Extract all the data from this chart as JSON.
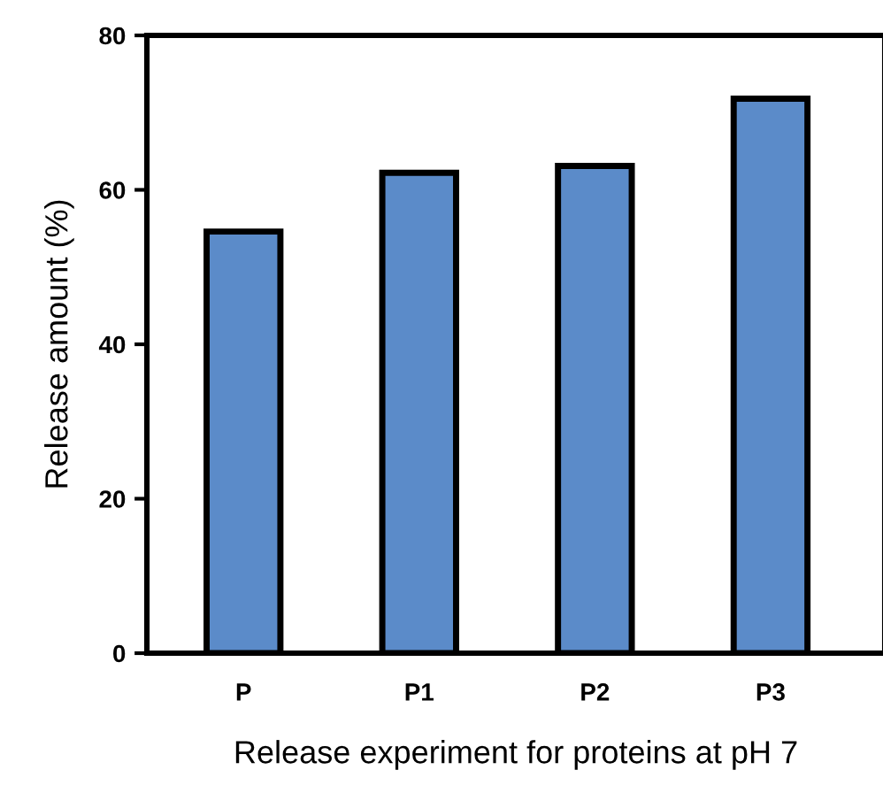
{
  "chart_data": {
    "type": "bar",
    "xlabel": "Release experiment for proteins at pH 7",
    "ylabel": "Release amount (%)",
    "categories": [
      "P",
      "P1",
      "P2",
      "P3"
    ],
    "values": [
      54.6,
      62.2,
      63.1,
      71.8
    ],
    "color": "#5b8bc9",
    "ylim": [
      0,
      80
    ],
    "yticks": [
      0,
      20,
      40,
      60,
      80
    ],
    "grid": false
  }
}
